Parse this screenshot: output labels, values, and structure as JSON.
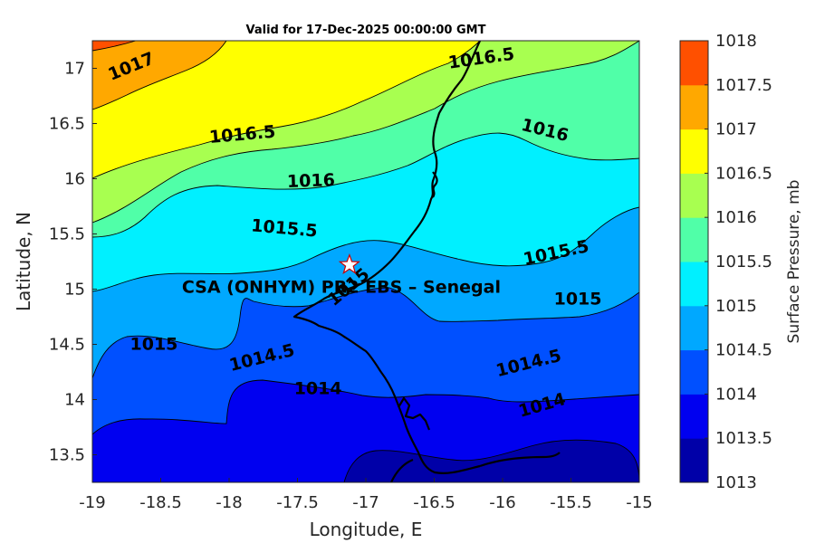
{
  "title": "Valid for 17-Dec-2025 00:00:00 GMT",
  "xlabel": "Longitude, E",
  "ylabel": "Latitude, N",
  "colorbar_label": "Surface Pressure, mb",
  "x_ticks": [
    "-19",
    "-18.5",
    "-18",
    "-17.5",
    "-17",
    "-16.5",
    "-16",
    "-15.5",
    "-15"
  ],
  "y_ticks": [
    "13.5",
    "14",
    "14.5",
    "15",
    "15.5",
    "16",
    "16.5",
    "17"
  ],
  "colorbar_ticks": [
    "1013",
    "1013.5",
    "1014",
    "1014.5",
    "1015",
    "1015.5",
    "1016",
    "1016.5",
    "1017",
    "1017.5",
    "1018"
  ],
  "colors": {
    "levels": [
      "#0000a8",
      "#0000f0",
      "#0050ff",
      "#00a8ff",
      "#00f0ff",
      "#50ffa8",
      "#a8ff50",
      "#ffff00",
      "#ffa800",
      "#ff5000",
      "#ff0000"
    ]
  },
  "station": {
    "label": "CSA (ONHYM) PR2 EBS  – Senegal",
    "marker": "star-icon",
    "lon": -17.12,
    "lat": 15.22
  },
  "chart_data": {
    "type": "contour",
    "title": "Valid for 17-Dec-2025 00:00:00 GMT",
    "xlabel": "Longitude, E",
    "ylabel": "Latitude, N",
    "xlim": [
      -19,
      -15
    ],
    "ylim": [
      13.25,
      17.25
    ],
    "variable": "Surface Pressure",
    "units": "mb",
    "clim": [
      1013,
      1018
    ],
    "contour_interval": 0.5,
    "contour_labels": [
      {
        "text": "1017",
        "lon": -18.7,
        "lat": 16.97
      },
      {
        "text": "1016.5",
        "lon": -17.9,
        "lat": 16.35
      },
      {
        "text": "1016.5",
        "lon": -16.15,
        "lat": 17.04
      },
      {
        "text": "1016",
        "lon": -17.4,
        "lat": 15.93
      },
      {
        "text": "1016",
        "lon": -15.7,
        "lat": 16.39
      },
      {
        "text": "1015.5",
        "lon": -17.6,
        "lat": 15.5
      },
      {
        "text": "1015.5",
        "lon": -15.6,
        "lat": 15.28
      },
      {
        "text": "1015",
        "lon": -15.45,
        "lat": 14.86
      },
      {
        "text": "1015",
        "lon": -18.55,
        "lat": 14.45
      },
      {
        "text": "1014.5",
        "lon": -17.75,
        "lat": 14.33
      },
      {
        "text": "1014.5",
        "lon": -15.8,
        "lat": 14.28
      },
      {
        "text": "1014",
        "lon": -17.35,
        "lat": 14.05
      },
      {
        "text": "1014",
        "lon": -15.7,
        "lat": 13.9
      },
      {
        "text": "1015",
        "lon": -17.1,
        "lat": 14.98
      }
    ]
  }
}
